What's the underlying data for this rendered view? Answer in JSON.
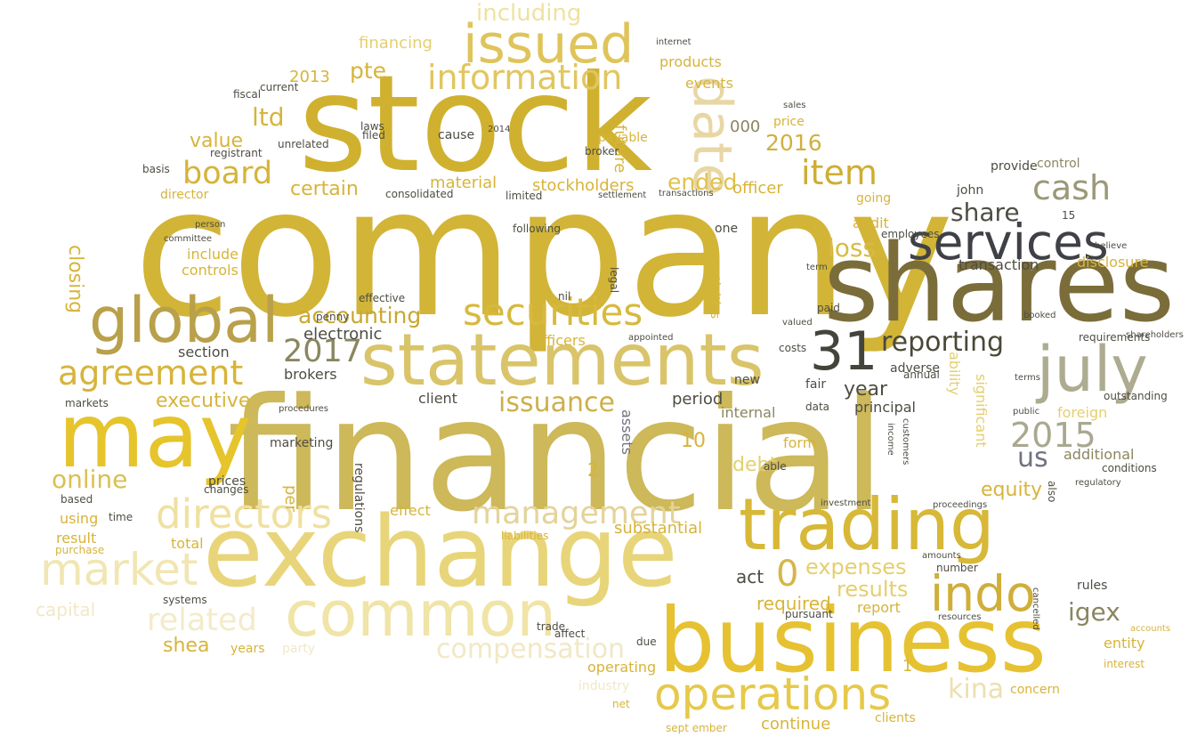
{
  "words": [
    {
      "text": "company",
      "color": "#d2b437"
    },
    {
      "text": "financial",
      "color": "#cdb85a"
    },
    {
      "text": "stock",
      "color": "#d0b12f"
    },
    {
      "text": "shares",
      "color": "#7a6d3a"
    },
    {
      "text": "exchange",
      "color": "#e8d57a"
    },
    {
      "text": "business",
      "color": "#e6c232"
    },
    {
      "text": "may",
      "color": "#e6c42c"
    },
    {
      "text": "statements",
      "color": "#d9c46a"
    },
    {
      "text": "trading",
      "color": "#d7b837"
    },
    {
      "text": "services",
      "color": "#3f4147"
    },
    {
      "text": "common",
      "color": "#f0e4a6"
    },
    {
      "text": "issued",
      "color": "#dfc45a"
    },
    {
      "text": "global",
      "color": "#b9a04a"
    },
    {
      "text": "july",
      "color": "#adab90"
    },
    {
      "text": "directors",
      "color": "#f0e0a0"
    },
    {
      "text": "operations",
      "color": "#e6c94a"
    },
    {
      "text": "market",
      "color": "#f1e6b3"
    },
    {
      "text": "31",
      "color": "#44443c"
    },
    {
      "text": "indo",
      "color": "#cfaf3a"
    },
    {
      "text": "securities",
      "color": "#d7b93e"
    },
    {
      "text": "information",
      "color": "#e1c660"
    },
    {
      "text": "agreement",
      "color": "#d7b43a"
    },
    {
      "text": "management",
      "color": "#e4d39a"
    },
    {
      "text": "compensation",
      "color": "#f1e8c6"
    },
    {
      "text": "related",
      "color": "#f3ebc9"
    },
    {
      "text": "date",
      "color": "#e8d7a4"
    },
    {
      "text": "cash",
      "color": "#9a9878"
    },
    {
      "text": "board",
      "color": "#d5b43a"
    },
    {
      "text": "item",
      "color": "#cfad33"
    },
    {
      "text": "reporting",
      "color": "#4a4838"
    },
    {
      "text": "2015",
      "color": "#a9a890"
    },
    {
      "text": "issuance",
      "color": "#cdb04a"
    },
    {
      "text": "kina",
      "color": "#ece0b0"
    },
    {
      "text": "0",
      "color": "#d5b648"
    },
    {
      "text": "loss",
      "color": "#d9bb44"
    },
    {
      "text": "online",
      "color": "#dac052"
    },
    {
      "text": "us",
      "color": "#6f7280"
    },
    {
      "text": "2017",
      "color": "#8a8660"
    },
    {
      "text": "share",
      "color": "#4e4d44"
    },
    {
      "text": "including",
      "color": "#efe2a0"
    },
    {
      "text": "ended",
      "color": "#e0c04a"
    },
    {
      "text": "2016",
      "color": "#cfb040"
    },
    {
      "text": "accounting",
      "color": "#c8a830"
    },
    {
      "text": "ltd",
      "color": "#d7b43a"
    },
    {
      "text": "value",
      "color": "#d7b43a"
    },
    {
      "text": "certain",
      "color": "#d7b43a"
    },
    {
      "text": "pte",
      "color": "#d7b43a"
    },
    {
      "text": "executive",
      "color": "#d7b43a"
    },
    {
      "text": "expenses",
      "color": "#e5cf6e"
    },
    {
      "text": "results",
      "color": "#e5cf6e"
    },
    {
      "text": "equity",
      "color": "#d7b43a"
    },
    {
      "text": "debt",
      "color": "#e5cf6e"
    },
    {
      "text": "year",
      "color": "#4e4d44"
    },
    {
      "text": "igex",
      "color": "#8a8660"
    },
    {
      "text": "required",
      "color": "#d7b43a"
    },
    {
      "text": "substantial",
      "color": "#d7b43a"
    },
    {
      "text": "continue",
      "color": "#d7b43a"
    },
    {
      "text": "shea",
      "color": "#d7b43a"
    },
    {
      "text": "capital",
      "color": "#f1e8c6"
    },
    {
      "text": "electronic",
      "color": "#4e4d44"
    },
    {
      "text": "stockholders",
      "color": "#d7b43a"
    },
    {
      "text": "material",
      "color": "#d7b43a"
    },
    {
      "text": "financing",
      "color": "#e5cf6e"
    },
    {
      "text": "2013",
      "color": "#d7b43a"
    },
    {
      "text": "products",
      "color": "#d7b43a"
    },
    {
      "text": "events",
      "color": "#d7b43a"
    },
    {
      "text": "future",
      "color": "#d7b43a"
    },
    {
      "text": "000",
      "color": "#8a8660"
    },
    {
      "text": "officer",
      "color": "#d7b43a"
    },
    {
      "text": "audit",
      "color": "#d7b43a"
    },
    {
      "text": "transaction",
      "color": "#4e4d44"
    },
    {
      "text": "disclosure",
      "color": "#d7b43a"
    },
    {
      "text": "control",
      "color": "#8a8660"
    },
    {
      "text": "provide",
      "color": "#4e4d44"
    },
    {
      "text": "john",
      "color": "#4e4d44"
    },
    {
      "text": "closing",
      "color": "#d7b43a"
    },
    {
      "text": "include",
      "color": "#d7b43a"
    },
    {
      "text": "controls",
      "color": "#d7b43a"
    },
    {
      "text": "director",
      "color": "#d7b43a"
    },
    {
      "text": "section",
      "color": "#4e4d44"
    },
    {
      "text": "brokers",
      "color": "#4e4d44"
    },
    {
      "text": "effect",
      "color": "#d7b43a"
    },
    {
      "text": "result",
      "color": "#d7b43a"
    },
    {
      "text": "using",
      "color": "#d7b43a"
    },
    {
      "text": "period",
      "color": "#4e4d44"
    },
    {
      "text": "internal",
      "color": "#8a8660"
    },
    {
      "text": "form",
      "color": "#d7b43a"
    },
    {
      "text": "assets",
      "color": "#6f7280"
    },
    {
      "text": "principal",
      "color": "#4e4d44"
    },
    {
      "text": "significant",
      "color": "#e5cf6e"
    },
    {
      "text": "ability",
      "color": "#e5cf6e"
    },
    {
      "text": "additional",
      "color": "#8a8660"
    },
    {
      "text": "foreign",
      "color": "#e5cf6e"
    },
    {
      "text": "entity",
      "color": "#d7b43a"
    },
    {
      "text": "rules",
      "color": "#4e4d44"
    },
    {
      "text": "report",
      "color": "#d7b43a"
    },
    {
      "text": "act",
      "color": "#4e4d44"
    },
    {
      "text": "client",
      "color": "#4e4d44"
    },
    {
      "text": "officers",
      "color": "#d7b43a"
    },
    {
      "text": "marketing",
      "color": "#4e4d44"
    },
    {
      "text": "concern",
      "color": "#d7b43a"
    },
    {
      "text": "clients",
      "color": "#d7b43a"
    },
    {
      "text": "operating",
      "color": "#d7b43a"
    },
    {
      "text": "industry",
      "color": "#f1e8c6"
    },
    {
      "text": "total",
      "color": "#d7b43a"
    },
    {
      "text": "party",
      "color": "#f1e8c6"
    },
    {
      "text": "years",
      "color": "#d7b43a"
    },
    {
      "text": "liabilities",
      "color": "#d7b43a"
    },
    {
      "text": "10",
      "color": "#d7b43a"
    },
    {
      "text": "2",
      "color": "#d7b43a"
    },
    {
      "text": "1",
      "color": "#d7b43a"
    },
    {
      "text": "regulations",
      "color": "#4e4d44"
    },
    {
      "text": "activities",
      "color": "#d7b43a"
    },
    {
      "text": "laws",
      "color": "#4e4d44"
    },
    {
      "text": "cause",
      "color": "#4e4d44"
    },
    {
      "text": "broker",
      "color": "#4e4d44"
    },
    {
      "text": "payable",
      "color": "#d7b43a"
    },
    {
      "text": "price",
      "color": "#d7b43a"
    },
    {
      "text": "paid",
      "color": "#4e4d44"
    },
    {
      "text": "fair",
      "color": "#4e4d44"
    },
    {
      "text": "data",
      "color": "#4e4d44"
    },
    {
      "text": "costs",
      "color": "#4e4d44"
    },
    {
      "text": "employees",
      "color": "#4e4d44"
    },
    {
      "text": "going",
      "color": "#d7b43a"
    },
    {
      "text": "adverse",
      "color": "#4e4d44"
    },
    {
      "text": "annual",
      "color": "#4e4d44"
    },
    {
      "text": "per",
      "color": "#d7b43a"
    },
    {
      "text": "new",
      "color": "#4e4d44"
    },
    {
      "text": "able",
      "color": "#4e4d44"
    },
    {
      "text": "one",
      "color": "#4e4d44"
    },
    {
      "text": "prices",
      "color": "#4e4d44"
    },
    {
      "text": "changes",
      "color": "#4e4d44"
    },
    {
      "text": "time",
      "color": "#4e4d44"
    },
    {
      "text": "based",
      "color": "#4e4d44"
    },
    {
      "text": "markets",
      "color": "#4e4d44"
    },
    {
      "text": "systems",
      "color": "#4e4d44"
    },
    {
      "text": "purchase",
      "color": "#d7b43a"
    },
    {
      "text": "sept ember",
      "color": "#d7b43a"
    },
    {
      "text": "net",
      "color": "#d7b43a"
    },
    {
      "text": "trade",
      "color": "#4e4d44"
    },
    {
      "text": "affect",
      "color": "#4e4d44"
    },
    {
      "text": "due",
      "color": "#4e4d44"
    },
    {
      "text": "pursuant",
      "color": "#4e4d44"
    },
    {
      "text": "interest",
      "color": "#d7b43a"
    },
    {
      "text": "accounts",
      "color": "#d7b43a"
    },
    {
      "text": "outstanding",
      "color": "#4e4d44"
    },
    {
      "text": "registrant",
      "color": "#4e4d44"
    },
    {
      "text": "basis",
      "color": "#4e4d44"
    },
    {
      "text": "unrelated",
      "color": "#4e4d44"
    },
    {
      "text": "current",
      "color": "#4e4d44"
    },
    {
      "text": "fiscal",
      "color": "#4e4d44"
    },
    {
      "text": "filed",
      "color": "#4e4d44"
    },
    {
      "text": "limited",
      "color": "#4e4d44"
    },
    {
      "text": "consolidated",
      "color": "#4e4d44"
    },
    {
      "text": "settlement",
      "color": "#4e4d44"
    },
    {
      "text": "transactions",
      "color": "#4e4d44"
    },
    {
      "text": "following",
      "color": "#4e4d44"
    },
    {
      "text": "person",
      "color": "#4e4d44"
    },
    {
      "text": "committee",
      "color": "#4e4d44"
    },
    {
      "text": "effective",
      "color": "#4e4d44"
    },
    {
      "text": "penny",
      "color": "#4e4d44"
    },
    {
      "text": "appointed",
      "color": "#4e4d44"
    },
    {
      "text": "procedures",
      "color": "#4e4d44"
    },
    {
      "text": "internet",
      "color": "#4e4d44"
    },
    {
      "text": "2014",
      "color": "#4e4d44"
    },
    {
      "text": "nil",
      "color": "#4e4d44"
    },
    {
      "text": "legal",
      "color": "#4e4d44"
    },
    {
      "text": "term",
      "color": "#4e4d44"
    },
    {
      "text": "valued",
      "color": "#4e4d44"
    },
    {
      "text": "sales",
      "color": "#4e4d44"
    },
    {
      "text": "amounts",
      "color": "#4e4d44"
    },
    {
      "text": "number",
      "color": "#4e4d44"
    },
    {
      "text": "proceedings",
      "color": "#4e4d44"
    },
    {
      "text": "investment",
      "color": "#4e4d44"
    },
    {
      "text": "income",
      "color": "#4e4d44"
    },
    {
      "text": "customers",
      "color": "#4e4d44"
    },
    {
      "text": "requirements",
      "color": "#4e4d44"
    },
    {
      "text": "booked",
      "color": "#4e4d44"
    },
    {
      "text": "shareholders",
      "color": "#4e4d44"
    },
    {
      "text": "also",
      "color": "#4e4d44"
    },
    {
      "text": "cancelled",
      "color": "#4e4d44"
    },
    {
      "text": "resources",
      "color": "#4e4d44"
    },
    {
      "text": "conditions",
      "color": "#4e4d44"
    },
    {
      "text": "regulatory",
      "color": "#4e4d44"
    },
    {
      "text": "terms",
      "color": "#4e4d44"
    },
    {
      "text": "public",
      "color": "#4e4d44"
    },
    {
      "text": "believe",
      "color": "#4e4d44"
    },
    {
      "text": "15",
      "color": "#4e4d44"
    }
  ]
}
